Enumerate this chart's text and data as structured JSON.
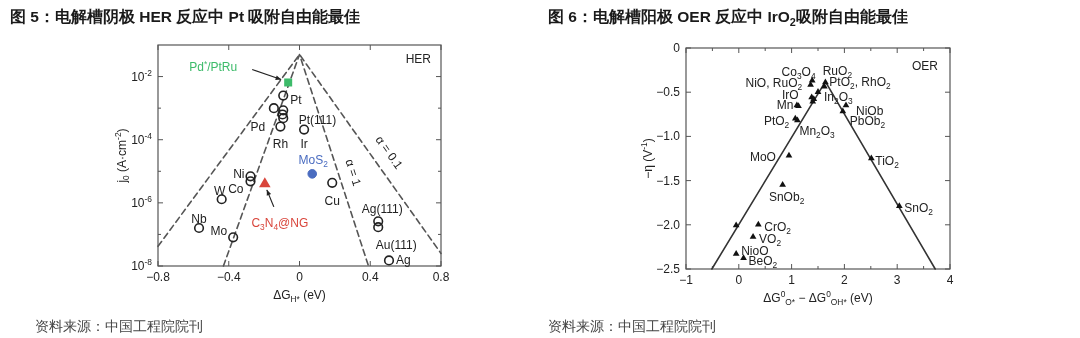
{
  "chart_data": [
    {
      "type": "scatter",
      "title": "图 5：电解槽阴极 HER 反应中 Pt 吸附自由能最佳",
      "xlabel": "ΔG$_{H*}$ (eV)",
      "ylabel": "j$_{0}$ (A·cm$^{-2}$)",
      "log": "y",
      "xlim": [
        -0.8,
        0.8
      ],
      "ylim": [
        1e-08,
        0.1
      ],
      "xticks": [
        {
          "value": -0.8,
          "label": "−0.8"
        },
        {
          "value": -0.4,
          "label": "−0.4"
        },
        0,
        {
          "value": 0.4,
          "label": "0.4"
        },
        {
          "value": 0.8,
          "label": "0.8"
        }
      ],
      "yticks": [
        {
          "value": 1e-08,
          "label": "10$^{-8}$"
        },
        {
          "value": 1e-07,
          "label": null
        },
        {
          "value": 1e-06,
          "label": "10$^{-6}$"
        },
        {
          "value": 1e-05,
          "label": null
        },
        {
          "value": 0.0001,
          "label": "10$^{-4}$"
        },
        {
          "value": 0.001,
          "label": null
        },
        {
          "value": 0.01,
          "label": "10$^{-2}$"
        }
      ],
      "series": [
        {
          "type": "line",
          "color": "#555555",
          "line_style": "dashed",
          "marker": "none",
          "x": [
            -0.8,
            0,
            0.8
          ],
          "values": [
            4.2e-08,
            0.05,
            2.5e-08
          ]
        },
        {
          "type": "line",
          "color": "#555555",
          "line_style": "dashed",
          "marker": "none",
          "x": [
            -0.43,
            0,
            0.39
          ],
          "values": [
            1e-08,
            0.05,
            1e-08
          ]
        },
        {
          "type": "scatter",
          "color": "#222222",
          "marker": "circle",
          "x": [
            -0.092,
            -0.145,
            -0.092,
            -0.096,
            -0.092,
            -0.108,
            0.026,
            -0.277,
            -0.277,
            -0.44,
            -0.568,
            -0.375,
            0.185,
            0.445,
            0.445,
            0.506
          ],
          "values": [
            0.0025,
            0.001,
            0.00085,
            0.00063,
            0.00048,
            0.00026,
            0.00021,
            6.9e-06,
            4.8e-06,
            1.3e-06,
            1.6e-07,
            8.1e-08,
            4.3e-06,
            2.6e-07,
            1.7e-07,
            1.5e-08
          ]
        },
        {
          "type": "scatter",
          "name": "Pd$^{*}$/PtRu",
          "color": "#3dbb6a",
          "marker": "square",
          "x": [
            -0.064
          ],
          "values": [
            0.0065
          ]
        },
        {
          "type": "scatter",
          "name": "MoS$_{2}$",
          "color": "#4a6cc0",
          "marker": "circle",
          "x": [
            0.072
          ],
          "values": [
            8.3e-06
          ]
        },
        {
          "type": "scatter",
          "name": "C$_{3}$N$_{4}$@NG",
          "color": "#d9453b",
          "marker": "triangle",
          "x": [
            -0.196
          ],
          "values": [
            4.3e-06
          ]
        }
      ],
      "annotations": [
        "HER",
        {
          "text": "α = 1",
          "x": 0.22,
          "y": 8.3e-06
        },
        {
          "text": "α = 0.1",
          "x": 0.42,
          "y": 2.5e-05
        },
        {
          "text": "Pt",
          "x": -0.092,
          "y": 0.0025
        },
        {
          "text": "Pd",
          "x": -0.145,
          "y": 0.001
        },
        {
          "text": "Pt(111)",
          "x": -0.096,
          "y": 0.00063
        },
        {
          "text": "Rh",
          "x": -0.108,
          "y": 0.00026
        },
        {
          "text": "Ir",
          "x": 0.026,
          "y": 0.00021
        },
        {
          "text": "Ni",
          "x": -0.277,
          "y": 6.9e-06
        },
        {
          "text": "Co",
          "x": -0.277,
          "y": 4.8e-06
        },
        {
          "text": "W",
          "x": -0.44,
          "y": 1.3e-06
        },
        {
          "text": "Nb",
          "x": -0.568,
          "y": 1.6e-07
        },
        {
          "text": "Mo",
          "x": -0.375,
          "y": 8.1e-08
        },
        {
          "text": "Cu",
          "x": 0.185,
          "y": 4.3e-06
        },
        {
          "text": "Ag(111)",
          "x": 0.445,
          "y": 2.6e-07
        },
        {
          "text": "Au(111)",
          "x": 0.445,
          "y": 1.7e-07
        },
        {
          "text": "Ag",
          "x": 0.506,
          "y": 1.5e-08
        },
        "资料来源：中国工程院院刊"
      ]
    },
    {
      "type": "scatter",
      "title": "图 6：电解槽阳极 OER 反应中 IrO$_{2}$吸附自由能最佳",
      "xlabel": "ΔG$^{0}$$_{O*}$ − ΔG$^{0}$$_{OH*}$ (eV)",
      "ylabel": "−η (V$^{-1}$)",
      "xlim": [
        -1,
        4
      ],
      "ylim": [
        -2.5,
        0
      ],
      "xticks": [
        {
          "value": -1,
          "label": "−1"
        },
        {
          "value": -0.5,
          "label": null
        },
        0,
        {
          "value": 0.5,
          "label": null
        },
        1,
        {
          "value": 1.5,
          "label": null
        },
        2,
        {
          "value": 2.5,
          "label": null
        },
        3,
        {
          "value": 3.5,
          "label": null
        },
        4
      ],
      "yticks": [
        {
          "value": -2.5,
          "label": "−2.5"
        },
        {
          "value": -2,
          "label": "−2.0"
        },
        {
          "value": -1.5,
          "label": "−1.5"
        },
        {
          "value": -1,
          "label": "−1.0"
        },
        {
          "value": -0.5,
          "label": "−0.5"
        },
        0
      ],
      "series": [
        {
          "type": "line",
          "color": "#333333",
          "line_style": "solid",
          "marker": "none",
          "x": [
            -0.51,
            1.64,
            3.72
          ],
          "values": [
            -2.5,
            -0.38,
            -2.5
          ]
        },
        {
          "type": "scatter",
          "color": "#111111",
          "marker": "triangle",
          "x": [
            1.36,
            1.64,
            1.39,
            1.38,
            1.13,
            1.07,
            1.11,
            1.5,
            1.62,
            2.03,
            1.97,
            0.95,
            0.83,
            2.51,
            3.04,
            0.37,
            0.27,
            -0.05,
            0.09,
            -0.05,
            1.4,
            1.42,
            1.1
          ],
          "values": [
            -0.41,
            -0.38,
            -0.36,
            -0.55,
            -0.65,
            -0.79,
            -0.81,
            -0.49,
            -0.43,
            -0.64,
            -0.71,
            -1.21,
            -1.54,
            -1.24,
            -1.78,
            -1.99,
            -2.13,
            -2.32,
            -2.37,
            -2.0,
            -0.6,
            -0.57,
            -0.64
          ]
        }
      ],
      "annotations": [
        "OER",
        {
          "text": "Co$_{3}$O$_{4}$",
          "x": 1.36,
          "y": -0.41
        },
        {
          "text": "RuO$_{2}$",
          "x": 1.64,
          "y": -0.38
        },
        {
          "text": "NiO, RuO$_{2}$",
          "x": 1.39,
          "y": -0.36
        },
        {
          "text": "IrO",
          "x": 1.38,
          "y": -0.55
        },
        {
          "text": "Mn",
          "x": 1.13,
          "y": -0.65
        },
        {
          "text": "PtO$_{2}$",
          "x": 1.07,
          "y": -0.79
        },
        {
          "text": "Mn$_{2}$O$_{3}$",
          "x": 1.11,
          "y": -0.81
        },
        {
          "text": "In$_{2}$O$_{3}$",
          "x": 1.5,
          "y": -0.49
        },
        {
          "text": "PtO$_{2}$, RhO$_{2}$",
          "x": 1.62,
          "y": -0.43
        },
        {
          "text": "NiOb",
          "x": 2.03,
          "y": -0.64
        },
        {
          "text": "PbOb$_{2}$",
          "x": 1.97,
          "y": -0.71
        },
        {
          "text": "MoO",
          "x": 0.95,
          "y": -1.21
        },
        {
          "text": "SnOb$_{2}$",
          "x": 0.83,
          "y": -1.54
        },
        {
          "text": "TiO$_{2}$",
          "x": 2.51,
          "y": -1.24
        },
        {
          "text": "SnO$_{2}$",
          "x": 3.04,
          "y": -1.78
        },
        {
          "text": "CrO$_{2}$",
          "x": 0.37,
          "y": -1.99
        },
        {
          "text": "VO$_{2}$",
          "x": 0.27,
          "y": -2.13
        },
        {
          "text": "NioO",
          "x": -0.05,
          "y": -2.32
        },
        {
          "text": "BeO$_{2}$",
          "x": 0.09,
          "y": -2.37
        },
        "资料来源：中国工程院院刊"
      ]
    }
  ]
}
